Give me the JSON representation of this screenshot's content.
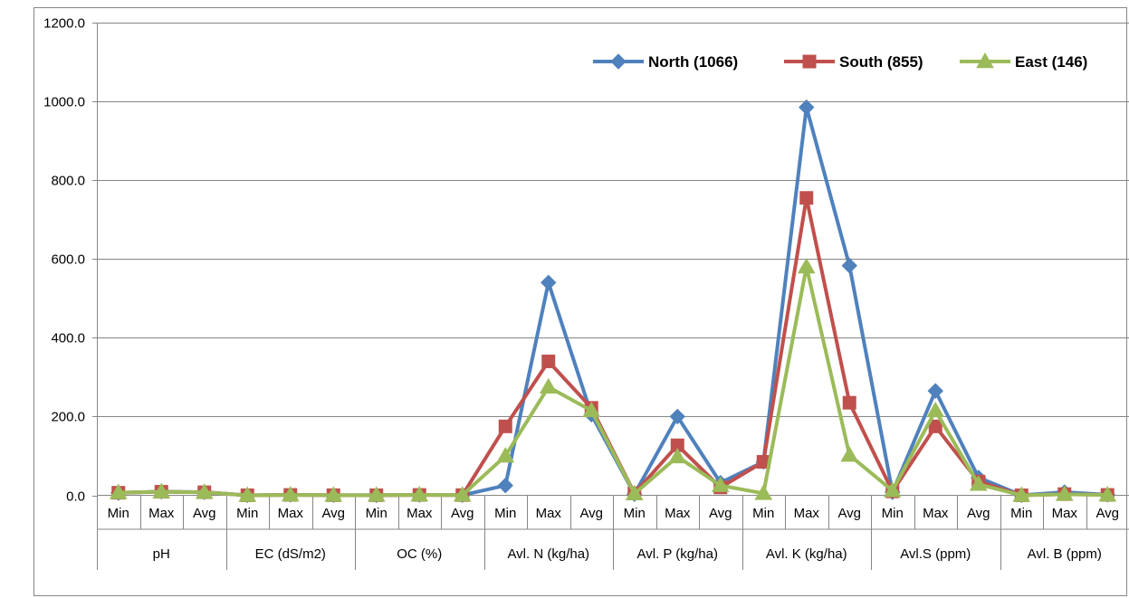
{
  "chart_data": {
    "type": "line",
    "title": "",
    "xlabel": "",
    "ylabel": "",
    "ylim": [
      0,
      1200
    ],
    "y_ticks": [
      "0.0",
      "200.0",
      "400.0",
      "600.0",
      "800.0",
      "1000.0",
      "1200.0"
    ],
    "grid": "horizontal",
    "legend_position": "top-right",
    "groups": [
      "pH",
      "EC (dS/m2)",
      "OC (%)",
      "Avl. N (kg/ha)",
      "Avl. P (kg/ha)",
      "Avl. K (kg/ha)",
      "Avl.S (ppm)",
      "Avl. B (ppm)"
    ],
    "sub_categories": [
      "Min",
      "Max",
      "Avg"
    ],
    "series": [
      {
        "name": "North (1066)",
        "color": "#4F81BD",
        "marker": "diamond",
        "values": [
          6.0,
          9.5,
          7.8,
          0.1,
          1.2,
          0.4,
          0.2,
          1.0,
          0.5,
          25,
          540,
          205,
          3,
          200,
          32,
          85,
          985,
          583,
          8,
          265,
          45,
          0.2,
          8.0,
          1.5
        ]
      },
      {
        "name": "South (855)",
        "color": "#C0504D",
        "marker": "square",
        "values": [
          6.5,
          9.0,
          7.7,
          0.1,
          1.0,
          0.3,
          0.2,
          0.9,
          0.5,
          175,
          340,
          222,
          5,
          127,
          20,
          85,
          755,
          235,
          10,
          175,
          35,
          0.1,
          3.0,
          1.0
        ]
      },
      {
        "name": "East (146)",
        "color": "#9BBB59",
        "marker": "triangle",
        "values": [
          6.8,
          8.8,
          7.6,
          0.1,
          0.8,
          0.3,
          0.3,
          1.0,
          0.6,
          100,
          275,
          215,
          4,
          98,
          25,
          5,
          580,
          102,
          12,
          215,
          28,
          0.1,
          2.5,
          0.8
        ]
      }
    ]
  }
}
